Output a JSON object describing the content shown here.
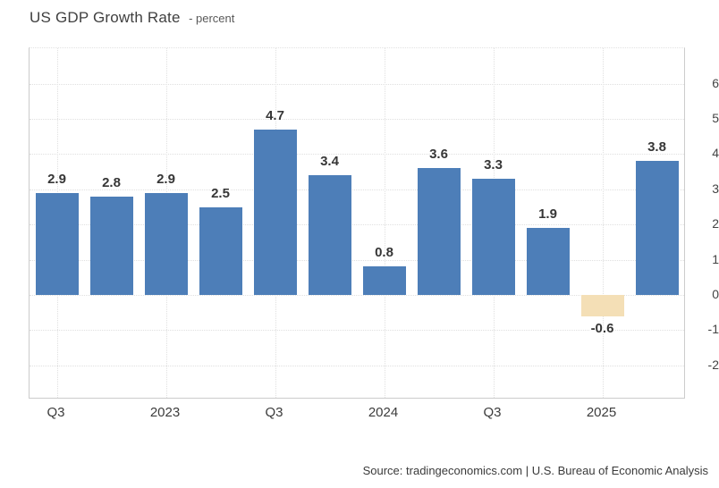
{
  "header": {
    "title": "US GDP Growth Rate",
    "subtitle": "- percent"
  },
  "chart_data": {
    "type": "bar",
    "title": "US GDP Growth Rate",
    "ylabel": "percent",
    "values": [
      2.9,
      2.8,
      2.9,
      2.5,
      4.7,
      3.4,
      0.8,
      3.6,
      3.3,
      1.9,
      -0.6,
      3.8
    ],
    "bar_labels": [
      "2.9",
      "2.8",
      "2.9",
      "2.5",
      "4.7",
      "3.4",
      "0.8",
      "3.6",
      "3.3",
      "1.9",
      "-0.6",
      "3.8"
    ],
    "x_ticks": [
      {
        "label": "Q3",
        "bar_index": 0
      },
      {
        "label": "2023",
        "bar_index": 2
      },
      {
        "label": "Q3",
        "bar_index": 4
      },
      {
        "label": "2024",
        "bar_index": 6
      },
      {
        "label": "Q3",
        "bar_index": 8
      },
      {
        "label": "2025",
        "bar_index": 10
      }
    ],
    "y_ticks": [
      6,
      5,
      4,
      3,
      2,
      1,
      0,
      -1,
      -2
    ],
    "ylim": [
      -2.9,
      7
    ],
    "grid": "dotted",
    "legend": "none",
    "colors": {
      "positive_bar": "#4d7eb8",
      "negative_bar": "#f4dfb6"
    }
  },
  "footer": {
    "source_prefix": "Source:",
    "source_site": "tradingeconomics.com",
    "separator": "|",
    "source_org": "U.S. Bureau of Economic Analysis"
  }
}
